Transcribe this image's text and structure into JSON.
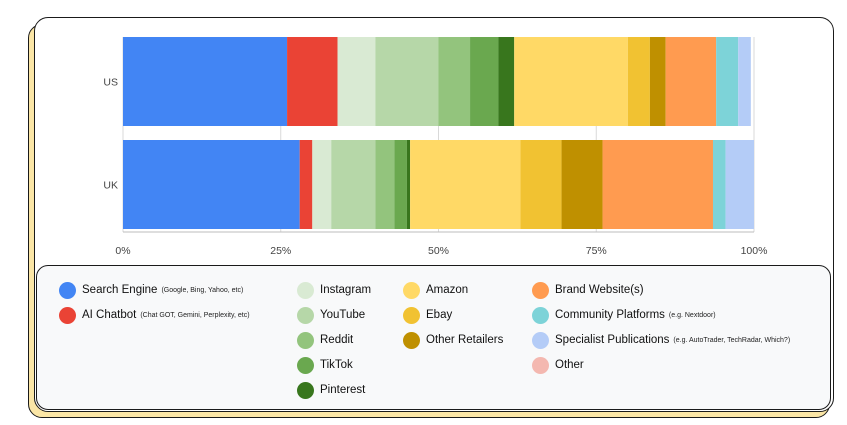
{
  "chart_data": {
    "type": "bar",
    "orientation": "horizontal",
    "stacked": true,
    "percent": true,
    "categories": [
      "US",
      "UK"
    ],
    "xlim": [
      0,
      100
    ],
    "x_ticks": [
      "0%",
      "25%",
      "50%",
      "75%",
      "100%"
    ],
    "series": [
      {
        "name": "Search Engine",
        "note": "(Google, Bing, Yahoo, etc)",
        "color": "#4285f4",
        "values": [
          26,
          28
        ]
      },
      {
        "name": "AI Chatbot",
        "note": "(Chat GOT, Gemini, Perplexity, etc)",
        "color": "#ea4335",
        "values": [
          8,
          2
        ]
      },
      {
        "name": "Instagram",
        "note": "",
        "color": "#d9ead3",
        "values": [
          6,
          3
        ]
      },
      {
        "name": "YouTube",
        "note": "",
        "color": "#b6d7a8",
        "values": [
          10,
          7
        ]
      },
      {
        "name": "Reddit",
        "note": "",
        "color": "#93c47d",
        "values": [
          5,
          3
        ]
      },
      {
        "name": "TikTok",
        "note": "",
        "color": "#6aa84f",
        "values": [
          4.5,
          2
        ]
      },
      {
        "name": "Pinterest",
        "note": "",
        "color": "#38761d",
        "values": [
          2.5,
          0.5
        ]
      },
      {
        "name": "Amazon",
        "note": "",
        "color": "#ffd966",
        "values": [
          18,
          17.5
        ]
      },
      {
        "name": "Ebay",
        "note": "",
        "color": "#f1c232",
        "values": [
          3.5,
          6.5
        ]
      },
      {
        "name": "Other Retailers",
        "note": "",
        "color": "#bf9000",
        "values": [
          2.5,
          6.5
        ]
      },
      {
        "name": "Brand Website(s)",
        "note": "",
        "color": "#ff9b50",
        "values": [
          8,
          17.5
        ]
      },
      {
        "name": "Community Platforms",
        "note": "(e.g. Nextdoor)",
        "color": "#7dd3d8",
        "values": [
          3.5,
          2
        ]
      },
      {
        "name": "Specialist Publications",
        "note": "(e.g. AutoTrader, TechRadar, Which?)",
        "color": "#b4ccf7",
        "values": [
          2,
          4.5
        ]
      },
      {
        "name": "Other",
        "note": "",
        "color": "#f4b8b0",
        "values": [
          0,
          0
        ]
      }
    ]
  },
  "legend": {
    "columns": [
      [
        0,
        1
      ],
      [
        2,
        3,
        4,
        5,
        6
      ],
      [
        7,
        8,
        9
      ],
      [
        10,
        11,
        12,
        13
      ]
    ]
  }
}
